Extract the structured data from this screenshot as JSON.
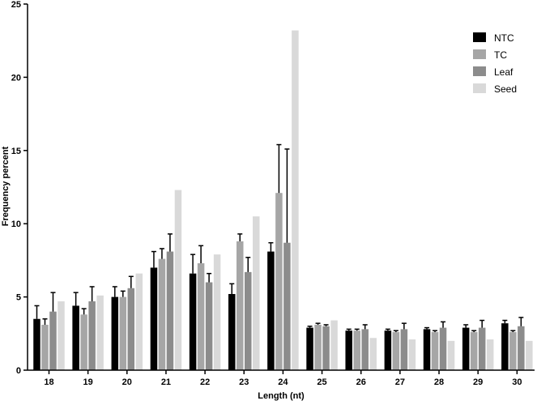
{
  "chart_data": {
    "type": "bar",
    "xlabel": "Length (nt)",
    "ylabel": "Frequency percent",
    "ylim": [
      0,
      25
    ],
    "yticks": [
      0,
      5,
      10,
      15,
      20,
      25
    ],
    "grid": false,
    "legend_position": "top-right",
    "categories": [
      "18",
      "19",
      "20",
      "21",
      "22",
      "23",
      "24",
      "25",
      "26",
      "27",
      "28",
      "29",
      "30"
    ],
    "series": [
      {
        "name": "NTC",
        "color": "#000000",
        "values": [
          3.5,
          4.4,
          5.0,
          7.0,
          6.6,
          5.2,
          8.1,
          2.9,
          2.7,
          2.7,
          2.8,
          2.9,
          3.2
        ],
        "errors": [
          0.9,
          0.9,
          0.7,
          1.1,
          1.3,
          0.7,
          0.6,
          0.1,
          0.1,
          0.1,
          0.1,
          0.2,
          0.2
        ]
      },
      {
        "name": "TC",
        "color": "#a6a6a6",
        "values": [
          3.1,
          3.8,
          5.0,
          7.6,
          7.3,
          8.8,
          12.1,
          3.1,
          2.7,
          2.6,
          2.6,
          2.6,
          2.6
        ],
        "errors": [
          0.4,
          0.4,
          0.4,
          0.7,
          1.2,
          0.5,
          3.3,
          0.1,
          0.1,
          0.1,
          0.1,
          0.1,
          0.1
        ]
      },
      {
        "name": "Leaf",
        "color": "#8c8c8c",
        "values": [
          4.0,
          4.7,
          5.6,
          8.1,
          6.0,
          6.7,
          8.7,
          3.0,
          2.8,
          2.8,
          2.9,
          2.9,
          3.0
        ],
        "errors": [
          1.3,
          1.0,
          0.8,
          1.2,
          0.6,
          1.0,
          6.4,
          0.1,
          0.3,
          0.4,
          0.4,
          0.5,
          0.6
        ]
      },
      {
        "name": "Seed",
        "color": "#d9d9d9",
        "values": [
          4.7,
          5.1,
          6.6,
          12.3,
          7.9,
          10.5,
          23.2,
          3.4,
          2.2,
          2.1,
          2.0,
          2.1,
          2.0
        ],
        "errors": [
          0,
          0,
          0,
          0,
          0,
          0,
          0,
          0,
          0,
          0,
          0,
          0,
          0
        ]
      }
    ]
  }
}
